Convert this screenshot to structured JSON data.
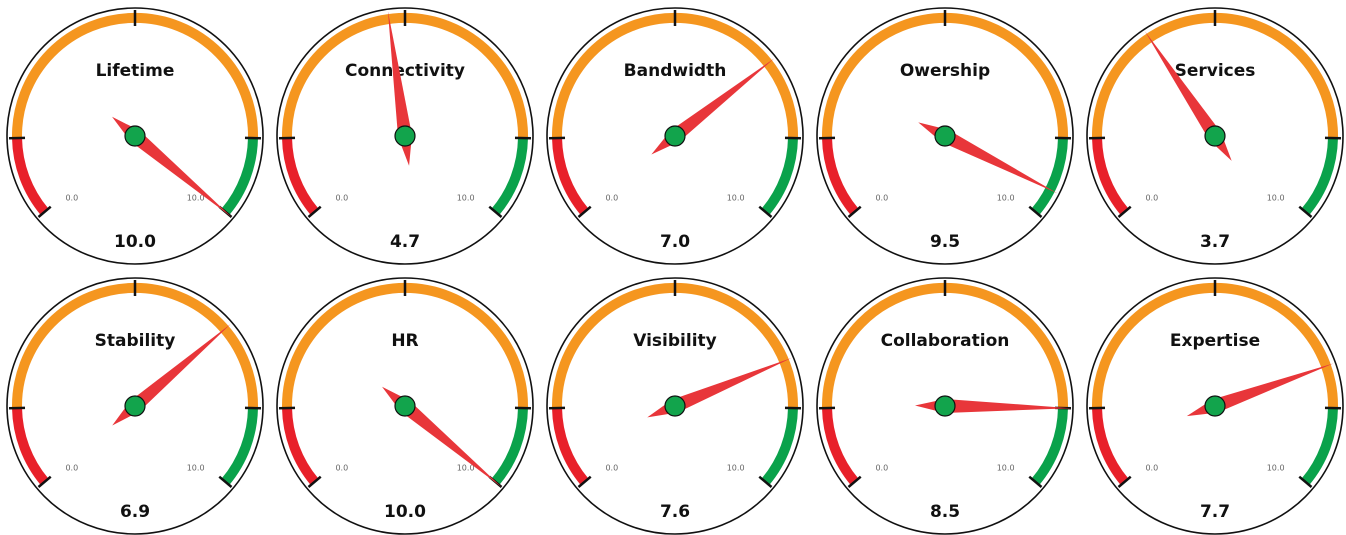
{
  "chart_data": {
    "type": "gauge",
    "min_label": "0.0",
    "max_label": "10.0",
    "range": [
      0,
      10
    ],
    "bands": [
      {
        "from": 0,
        "to": 1.5,
        "color": "#e8202a"
      },
      {
        "from": 1.5,
        "to": 8.5,
        "color": "#f5961f"
      },
      {
        "from": 8.5,
        "to": 10,
        "color": "#0aa24b"
      }
    ],
    "needle_color": "#e8363a",
    "hub_color": "#12a44c",
    "gauges": [
      {
        "title": "Lifetime",
        "value": 10.0,
        "display": "10.0"
      },
      {
        "title": "Connectivity",
        "value": 4.7,
        "display": "4.7"
      },
      {
        "title": "Bandwidth",
        "value": 7.0,
        "display": "7.0"
      },
      {
        "title": "Owership",
        "value": 9.5,
        "display": "9.5"
      },
      {
        "title": "Services",
        "value": 3.7,
        "display": "3.7"
      },
      {
        "title": "Stability",
        "value": 6.9,
        "display": "6.9"
      },
      {
        "title": "HR",
        "value": 10.0,
        "display": "10.0"
      },
      {
        "title": "Visibility",
        "value": 7.6,
        "display": "7.6"
      },
      {
        "title": "Collaboration",
        "value": 8.5,
        "display": "8.5"
      },
      {
        "title": "Expertise",
        "value": 7.7,
        "display": "7.7"
      }
    ]
  }
}
